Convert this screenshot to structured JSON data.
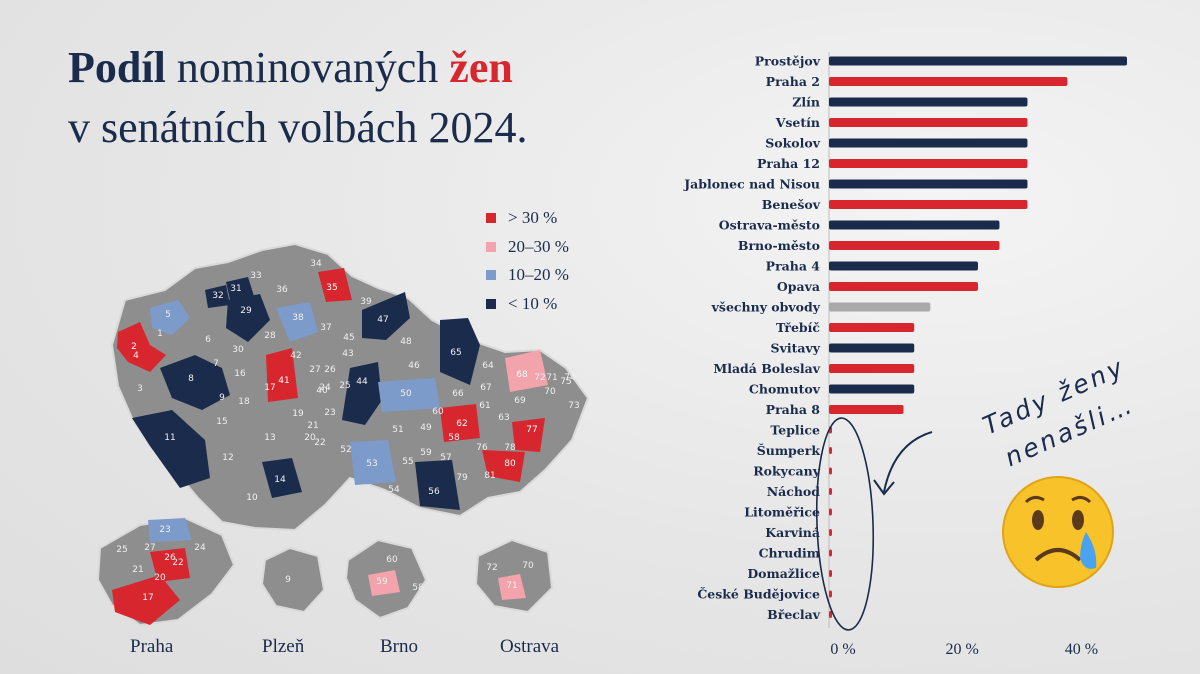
{
  "title": {
    "part1": "Podíl",
    "part2": " nominovaných ",
    "part3": "žen",
    "line2": "v senátních volbách 2024."
  },
  "legend": [
    {
      "label": "> 30 %",
      "color": "#d8262e"
    },
    {
      "label": "20–30 %",
      "color": "#f3a3ab"
    },
    {
      "label": "10–20 %",
      "color": "#7c9bcb"
    },
    {
      "label": "< 10 %",
      "color": "#1a2b4c"
    }
  ],
  "colors": {
    "navy": "#1a2b4c",
    "red": "#d8262e",
    "gray": "#a9a9a9",
    "district": "#8e8e8e"
  },
  "map": {
    "district_numbers": [
      "1",
      "2",
      "3",
      "4",
      "5",
      "6",
      "7",
      "8",
      "9",
      "10",
      "11",
      "12",
      "13",
      "14",
      "15",
      "16",
      "17",
      "18",
      "19",
      "20",
      "21",
      "22",
      "23",
      "24",
      "25",
      "26",
      "27",
      "28",
      "29",
      "30",
      "31",
      "32",
      "33",
      "34",
      "35",
      "36",
      "37",
      "38",
      "39",
      "40",
      "41",
      "42",
      "43",
      "44",
      "45",
      "46",
      "47",
      "48",
      "49",
      "50",
      "51",
      "52",
      "53",
      "54",
      "55",
      "56",
      "57",
      "58",
      "59",
      "60",
      "61",
      "62",
      "63",
      "64",
      "65",
      "66",
      "67",
      "68",
      "69",
      "70",
      "71",
      "72",
      "73",
      "74",
      "75",
      "76",
      "77",
      "78",
      "79",
      "80",
      "81"
    ],
    "cities": [
      "Praha",
      "Plzeň",
      "Brno",
      "Ostrava"
    ]
  },
  "annotation": {
    "line1": "Tady ženy",
    "line2": "nenašli…"
  },
  "chart_data": {
    "type": "bar",
    "orientation": "horizontal",
    "categories": [
      "Prostějov",
      "Praha 2",
      "Zlín",
      "Vsetín",
      "Sokolov",
      "Praha 12",
      "Jablonec nad Nisou",
      "Benešov",
      "Ostrava-město",
      "Brno-město",
      "Praha 4",
      "Opava",
      "všechny obvody",
      "Třebíč",
      "Svitavy",
      "Mladá Boleslav",
      "Chomutov",
      "Praha 8",
      "Teplice",
      "Šumperk",
      "Rokycany",
      "Náchod",
      "Litoměřice",
      "Karviná",
      "Chrudim",
      "Domažlice",
      "České Budějovice",
      "Břeclav"
    ],
    "values": [
      50,
      40,
      33.3,
      33.3,
      33.3,
      33.3,
      33.3,
      33.3,
      28.6,
      28.6,
      25,
      25,
      17,
      14.3,
      14.3,
      14.3,
      14.3,
      12.5,
      0,
      0,
      0,
      0,
      0,
      0,
      0,
      0,
      0,
      0
    ],
    "bar_colors": [
      "navy",
      "red",
      "navy",
      "red",
      "navy",
      "red",
      "navy",
      "red",
      "navy",
      "red",
      "navy",
      "red",
      "gray",
      "red",
      "navy",
      "red",
      "navy",
      "red",
      "red",
      "red",
      "red",
      "red",
      "red",
      "red",
      "red",
      "red",
      "red",
      "red"
    ],
    "xticks": [
      "0 %",
      "20 %",
      "40 %"
    ],
    "tick_values": [
      0,
      20,
      40
    ],
    "xlim": [
      0,
      52
    ]
  }
}
